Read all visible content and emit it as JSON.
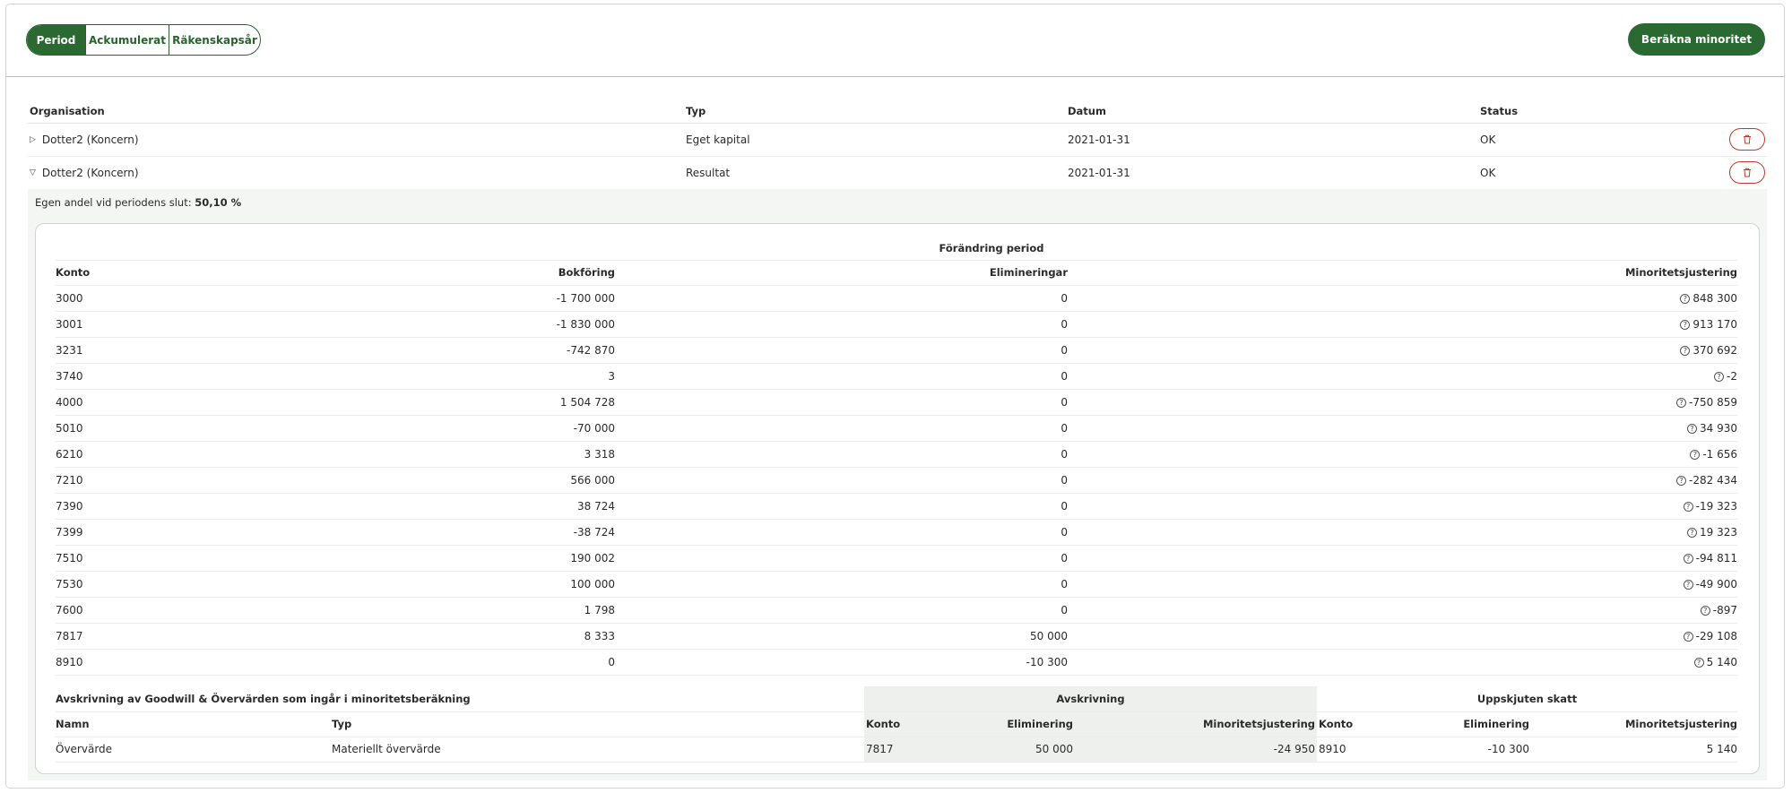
{
  "toolbar": {
    "tabs": [
      "Period",
      "Ackumulerat",
      "Räkenskapsår"
    ],
    "active_tab": "Period",
    "primary_button": "Beräkna minoritet"
  },
  "org_table": {
    "headers": {
      "organisation": "Organisation",
      "typ": "Typ",
      "datum": "Datum",
      "status": "Status"
    },
    "rows": [
      {
        "toggle": "▷",
        "organisation": "Dotter2 (Koncern)",
        "typ": "Eget kapital",
        "datum": "2021-01-31",
        "status": "OK"
      },
      {
        "toggle": "▽",
        "organisation": "Dotter2 (Koncern)",
        "typ": "Resultat",
        "datum": "2021-01-31",
        "status": "OK"
      }
    ]
  },
  "details": {
    "share_label": "Egen andel vid periodens slut:",
    "share_value": "50,10 %",
    "group_header": "Förändring period",
    "headers": {
      "konto": "Konto",
      "bokforing": "Bokföring",
      "elimineringar": "Elimineringar",
      "minoritet": "Minoritetsjustering"
    },
    "rows": [
      {
        "konto": "3000",
        "bokforing": "-1 700 000",
        "elimineringar": "0",
        "minoritet": "848 300"
      },
      {
        "konto": "3001",
        "bokforing": "-1 830 000",
        "elimineringar": "0",
        "minoritet": "913 170"
      },
      {
        "konto": "3231",
        "bokforing": "-742 870",
        "elimineringar": "0",
        "minoritet": "370 692"
      },
      {
        "konto": "3740",
        "bokforing": "3",
        "elimineringar": "0",
        "minoritet": "-2"
      },
      {
        "konto": "4000",
        "bokforing": "1 504 728",
        "elimineringar": "0",
        "minoritet": "-750 859"
      },
      {
        "konto": "5010",
        "bokforing": "-70 000",
        "elimineringar": "0",
        "minoritet": "34 930"
      },
      {
        "konto": "6210",
        "bokforing": "3 318",
        "elimineringar": "0",
        "minoritet": "-1 656"
      },
      {
        "konto": "7210",
        "bokforing": "566 000",
        "elimineringar": "0",
        "minoritet": "-282 434"
      },
      {
        "konto": "7390",
        "bokforing": "38 724",
        "elimineringar": "0",
        "minoritet": "-19 323"
      },
      {
        "konto": "7399",
        "bokforing": "-38 724",
        "elimineringar": "0",
        "minoritet": "19 323"
      },
      {
        "konto": "7510",
        "bokforing": "190 002",
        "elimineringar": "0",
        "minoritet": "-94 811"
      },
      {
        "konto": "7530",
        "bokforing": "100 000",
        "elimineringar": "0",
        "minoritet": "-49 900"
      },
      {
        "konto": "7600",
        "bokforing": "1 798",
        "elimineringar": "0",
        "minoritet": "-897"
      },
      {
        "konto": "7817",
        "bokforing": "8 333",
        "elimineringar": "50 000",
        "minoritet": "-29 108"
      },
      {
        "konto": "8910",
        "bokforing": "0",
        "elimineringar": "-10 300",
        "minoritet": "5 140"
      }
    ]
  },
  "goodwill": {
    "title": "Avskrivning av Goodwill & Övervärden som ingår i minoritetsberäkning",
    "avskrivning_header": "Avskrivning",
    "skatt_header": "Uppskjuten skatt",
    "headers": {
      "namn": "Namn",
      "typ": "Typ",
      "konto1": "Konto",
      "elim1": "Eliminering",
      "min1": "Minoritetsjustering",
      "konto2": "Konto",
      "elim2": "Eliminering",
      "min2": "Minoritetsjustering"
    },
    "row": {
      "namn": "Övervärde",
      "typ": "Materiellt övervärde",
      "konto1": "7817",
      "elim1": "50 000",
      "min1": "-24 950",
      "konto2": "8910",
      "elim2": "-10 300",
      "min2": "5 140"
    }
  },
  "colors": {
    "brand_green": "#2b6932",
    "danger_red": "#c0392b"
  },
  "icons": {
    "expand": "caret-right-icon",
    "collapse": "caret-down-icon",
    "delete": "trash-icon",
    "help": "question-circle-icon"
  }
}
